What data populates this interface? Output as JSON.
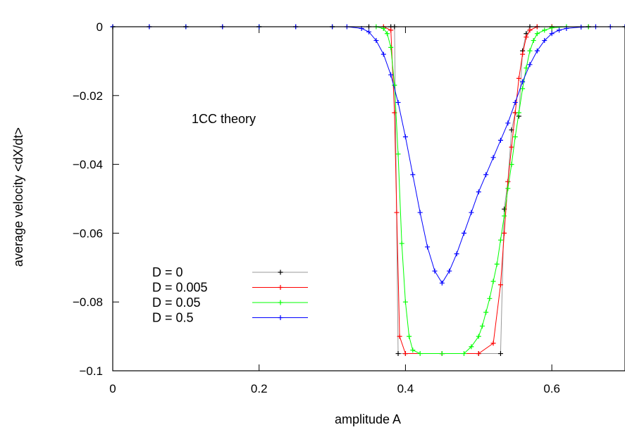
{
  "chart_data": {
    "type": "line",
    "xlabel": "amplitude A",
    "ylabel": "average velocity <dX/dt>",
    "annotation": "1CC theory",
    "xlim": [
      0,
      0.7
    ],
    "ylim": [
      -0.1,
      0.0
    ],
    "x_ticks": [
      0,
      0.2,
      0.4,
      0.6
    ],
    "x_tick_labels": [
      "0",
      "0.2",
      "0.4",
      "0.6"
    ],
    "y_ticks": [
      0,
      -0.02,
      -0.04,
      -0.06,
      -0.08,
      -0.1
    ],
    "y_tick_labels": [
      "0",
      "−0.02",
      "−0.04",
      "−0.06",
      "−0.08",
      "−0.1"
    ],
    "legend_position": "bottom-left",
    "series": [
      {
        "name": "D = 0",
        "color": "#000000",
        "line_color": "#999999",
        "marker": "plus",
        "x": [
          0.0,
          0.05,
          0.1,
          0.15,
          0.2,
          0.25,
          0.3,
          0.35,
          0.38,
          0.385,
          0.39,
          0.4,
          0.45,
          0.5,
          0.53,
          0.535,
          0.54,
          0.545,
          0.55,
          0.555,
          0.56,
          0.565,
          0.57,
          0.58,
          0.6,
          0.65,
          0.7
        ],
        "y": [
          0,
          0,
          0,
          0,
          0,
          0,
          0,
          0,
          0,
          0,
          -0.095,
          -0.095,
          -0.095,
          -0.095,
          -0.095,
          -0.053,
          -0.045,
          -0.03,
          -0.025,
          -0.026,
          -0.007,
          -0.002,
          0,
          0,
          0,
          0,
          0
        ]
      },
      {
        "name": "D = 0.005",
        "color": "#ff0000",
        "marker": "plus",
        "x": [
          0.0,
          0.1,
          0.2,
          0.3,
          0.37,
          0.38,
          0.385,
          0.388,
          0.392,
          0.4,
          0.45,
          0.5,
          0.52,
          0.53,
          0.535,
          0.54,
          0.545,
          0.55,
          0.555,
          0.56,
          0.565,
          0.57,
          0.58,
          0.6,
          0.65,
          0.7
        ],
        "y": [
          0,
          0,
          0,
          0,
          0,
          -0.001,
          -0.025,
          -0.054,
          -0.09,
          -0.095,
          -0.095,
          -0.095,
          -0.092,
          -0.075,
          -0.06,
          -0.045,
          -0.035,
          -0.025,
          -0.015,
          -0.008,
          -0.003,
          -0.001,
          0,
          0,
          0,
          0
        ]
      },
      {
        "name": "D = 0.05",
        "color": "#00ff00",
        "marker": "plus",
        "x": [
          0.0,
          0.1,
          0.2,
          0.3,
          0.36,
          0.37,
          0.375,
          0.38,
          0.385,
          0.39,
          0.395,
          0.4,
          0.405,
          0.41,
          0.42,
          0.45,
          0.48,
          0.49,
          0.5,
          0.505,
          0.51,
          0.515,
          0.52,
          0.525,
          0.53,
          0.535,
          0.54,
          0.545,
          0.55,
          0.555,
          0.56,
          0.565,
          0.57,
          0.575,
          0.58,
          0.59,
          0.6,
          0.62,
          0.65,
          0.7
        ],
        "y": [
          0,
          0,
          0,
          0,
          0,
          -0.0005,
          -0.002,
          -0.006,
          -0.017,
          -0.037,
          -0.063,
          -0.08,
          -0.09,
          -0.094,
          -0.095,
          -0.095,
          -0.095,
          -0.093,
          -0.09,
          -0.087,
          -0.083,
          -0.079,
          -0.074,
          -0.069,
          -0.062,
          -0.055,
          -0.047,
          -0.04,
          -0.032,
          -0.025,
          -0.018,
          -0.012,
          -0.007,
          -0.004,
          -0.002,
          -0.001,
          -0.0003,
          0,
          0,
          0
        ]
      },
      {
        "name": "D = 0.5",
        "color": "#0000ff",
        "marker": "plus",
        "x": [
          0.0,
          0.05,
          0.1,
          0.15,
          0.2,
          0.25,
          0.3,
          0.32,
          0.34,
          0.35,
          0.36,
          0.37,
          0.38,
          0.39,
          0.4,
          0.41,
          0.42,
          0.43,
          0.44,
          0.45,
          0.46,
          0.47,
          0.48,
          0.49,
          0.5,
          0.51,
          0.52,
          0.53,
          0.54,
          0.55,
          0.56,
          0.57,
          0.58,
          0.59,
          0.6,
          0.61,
          0.62,
          0.64,
          0.66,
          0.68,
          0.7
        ],
        "y": [
          0,
          0,
          0,
          0,
          0,
          0,
          0,
          0,
          -0.0005,
          -0.0015,
          -0.004,
          -0.008,
          -0.014,
          -0.022,
          -0.032,
          -0.043,
          -0.054,
          -0.064,
          -0.071,
          -0.0745,
          -0.071,
          -0.066,
          -0.06,
          -0.054,
          -0.048,
          -0.043,
          -0.038,
          -0.033,
          -0.028,
          -0.022,
          -0.016,
          -0.011,
          -0.007,
          -0.004,
          -0.002,
          -0.001,
          -0.0005,
          -0.0001,
          0,
          0,
          0
        ]
      }
    ]
  }
}
